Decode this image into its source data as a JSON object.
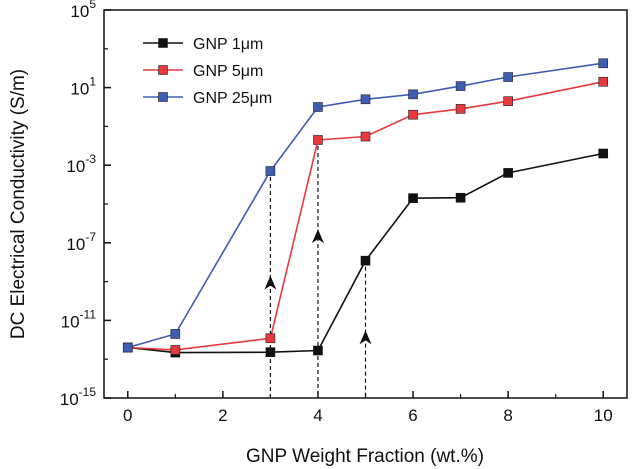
{
  "chart_data": {
    "type": "line",
    "title": "",
    "xlabel": "GNP Weight Fraction (wt.%)",
    "ylabel": "DC Electrical Conductivity (S/m)",
    "xlim": [
      -0.5,
      10.5
    ],
    "ylim_log10": [
      -15,
      5
    ],
    "yscale": "log",
    "grid": false,
    "legend": "top-left",
    "x_ticks": [
      "0",
      "2",
      "4",
      "6",
      "8",
      "10"
    ],
    "y_tick_bases": [
      "10",
      "10",
      "10",
      "10",
      "10",
      "10"
    ],
    "y_tick_exponents": [
      "-15",
      "-11",
      "-7",
      "-3",
      "1",
      "5"
    ],
    "series": [
      {
        "name": "GNP 1μm",
        "color": "#111111",
        "x": [
          0,
          1,
          3,
          4,
          5,
          6,
          7,
          8,
          10
        ],
        "y": [
          4e-13,
          2.2e-13,
          2.3e-13,
          2.8e-13,
          1.2e-08,
          2e-05,
          2.1e-05,
          0.0004,
          0.004
        ]
      },
      {
        "name": "GNP 5μm",
        "color": "#e8393c",
        "x": [
          0,
          1,
          3,
          4,
          5,
          6,
          7,
          8,
          10
        ],
        "y": [
          4e-13,
          3e-13,
          1.2e-12,
          0.02,
          0.03,
          0.4,
          0.8,
          2,
          20
        ]
      },
      {
        "name": "GNP 25μm",
        "color": "#3d5eb4",
        "x": [
          0,
          1,
          3,
          4,
          5,
          6,
          7,
          8,
          10
        ],
        "y": [
          4e-13,
          2e-12,
          0.0005,
          1,
          2.5,
          4.5,
          12,
          35,
          180
        ]
      }
    ],
    "percolation_markers": [
      {
        "x": 3,
        "y": 1e-09
      },
      {
        "x": 4,
        "y": 2.5e-07
      },
      {
        "x": 5,
        "y": 1.5e-12
      }
    ]
  }
}
